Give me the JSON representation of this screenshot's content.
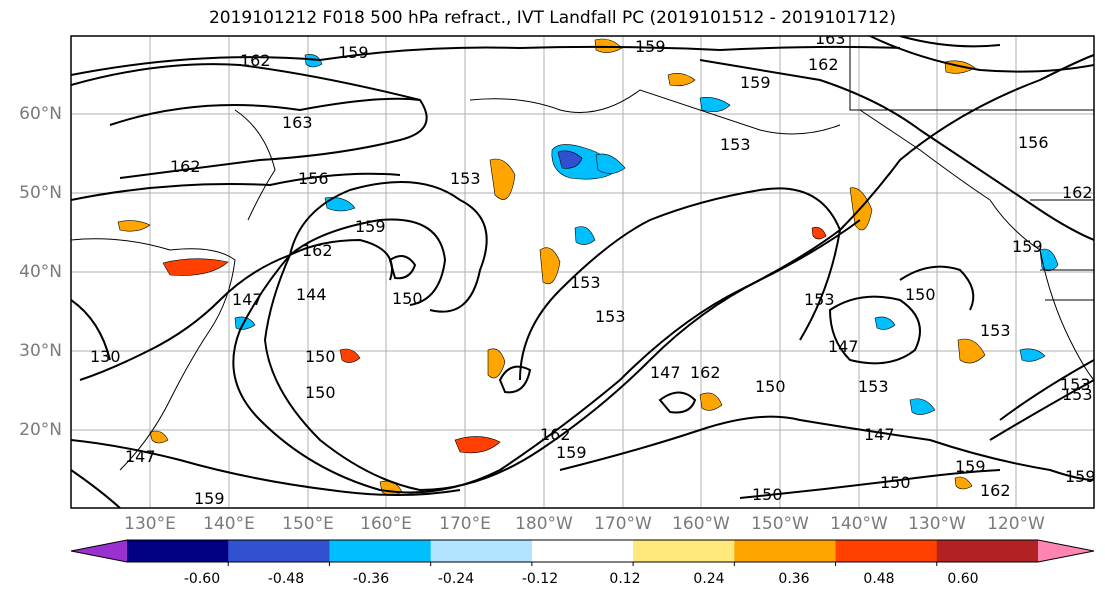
{
  "title": "2019101212 F018 500 hPa refract., IVT Landfall PC (2019101512 - 2019101712)",
  "lat_labels": [
    "60°N",
    "50°N",
    "40°N",
    "30°N",
    "20°N"
  ],
  "lon_labels": [
    "130°E",
    "140°E",
    "150°E",
    "160°E",
    "170°E",
    "180°W",
    "170°W",
    "160°W",
    "150°W",
    "140°W",
    "130°W",
    "120°W"
  ],
  "contour_labels": [
    "159",
    "162",
    "163",
    "159",
    "162",
    "159",
    "162",
    "163",
    "162",
    "153",
    "156",
    "159",
    "153",
    "156",
    "162",
    "159",
    "153",
    "147",
    "144",
    "150",
    "153",
    "153",
    "153",
    "153",
    "150",
    "147",
    "147",
    "150",
    "150",
    "153",
    "162",
    "162",
    "159",
    "147",
    "150",
    "147",
    "150",
    "159",
    "162",
    "159",
    "153",
    "130",
    "159",
    "150"
  ],
  "colorbar": {
    "ticks": [
      "-0.60",
      "-0.48",
      "-0.36",
      "-0.24",
      "-0.12",
      "0.12",
      "0.24",
      "0.36",
      "0.48",
      "0.60"
    ],
    "colors": [
      "#9b30d0",
      "#000080",
      "#3050d0",
      "#00bfff",
      "#b0e4ff",
      "#ffffff",
      "#ffe87c",
      "#ffa500",
      "#ff4000",
      "#b22222",
      "#ff85b0"
    ]
  }
}
